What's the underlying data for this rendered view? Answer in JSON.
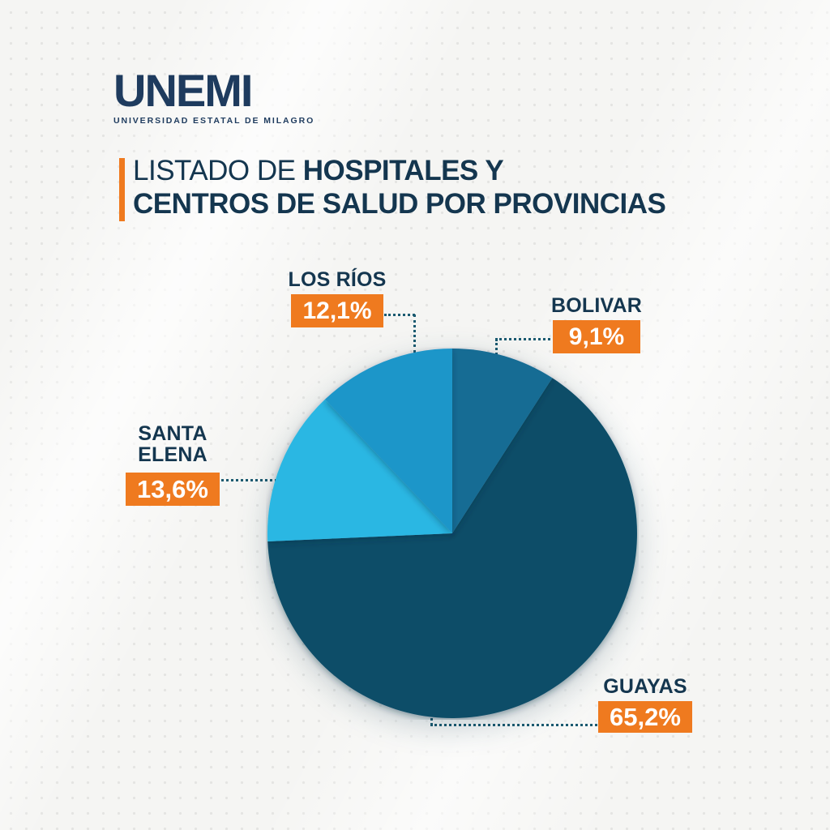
{
  "background": {
    "color": "#f5f5f3",
    "dot_color": "#e4e4e2"
  },
  "logo": {
    "wordmark": "UNEMI",
    "subtitle": "UNIVERSIDAD ESTATAL DE MILAGRO",
    "color": "#1e3b5e"
  },
  "title": {
    "line1_light": "LISTADO DE ",
    "line1_bold": "HOSPITALES Y",
    "line2_bold": "CENTROS DE SALUD POR PROVINCIAS",
    "accent_color": "#ef7a1f",
    "text_color": "#14364f"
  },
  "chart_data": {
    "type": "pie",
    "title": "Listado de hospitales y centros de salud por provincias",
    "categories": [
      "BOLIVAR",
      "GUAYAS",
      "SANTA ELENA",
      "LOS RÍOS"
    ],
    "values": [
      9.1,
      65.2,
      13.6,
      12.1
    ],
    "value_labels": [
      "9,1%",
      "65,2%",
      "13,6%",
      "12,1%"
    ],
    "colors": [
      "#146c94",
      "#0a4d68",
      "#29b7e3",
      "#1e96c9"
    ],
    "start_angle_deg": 0,
    "direction": "clockwise",
    "legend_position": "none",
    "callout_box_color": "#ef7a1f",
    "callout_value_text_color": "#ffffff",
    "callout_name_text_color": "#14364f",
    "connector_color": "#1b5a70"
  }
}
